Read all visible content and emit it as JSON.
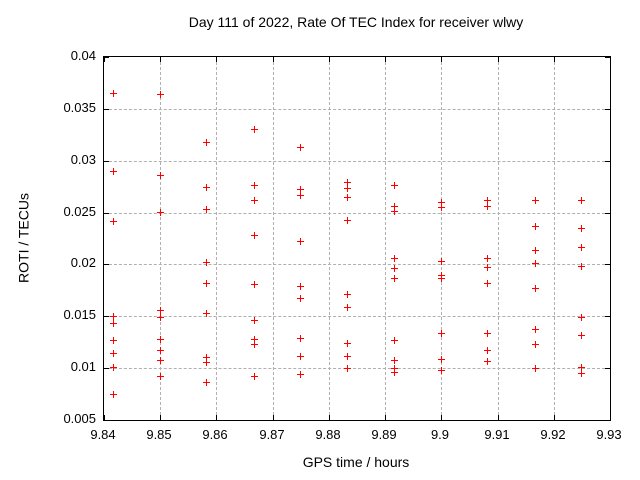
{
  "chart_data": {
    "type": "scatter",
    "title": "Day 111 of 2022, Rate Of TEC Index for receiver wlwy",
    "xlabel": "GPS time / hours",
    "ylabel": "ROTI / TECUs",
    "xlim": [
      9.84,
      9.93
    ],
    "ylim": [
      0.005,
      0.04
    ],
    "xticks": [
      9.84,
      9.85,
      9.86,
      9.87,
      9.88,
      9.89,
      9.9,
      9.91,
      9.92,
      9.93
    ],
    "xtick_labels": [
      "9.84",
      "9.85",
      "9.86",
      "9.87",
      "9.88",
      "9.89",
      "9.9",
      "9.91",
      "9.92",
      "9.93"
    ],
    "yticks": [
      0.005,
      0.01,
      0.015,
      0.02,
      0.025,
      0.03,
      0.035,
      0.04
    ],
    "ytick_labels": [
      "0.005",
      "0.01",
      "0.015",
      "0.02",
      "0.025",
      "0.03",
      "0.035",
      "0.04"
    ],
    "grid": true,
    "legend": "none",
    "marker": "plus",
    "marker_color": "#ff0000",
    "series": [
      {
        "name": "roti",
        "points": [
          [
            9.8417,
            0.0365
          ],
          [
            9.8417,
            0.029
          ],
          [
            9.8417,
            0.0241
          ],
          [
            9.8417,
            0.015
          ],
          [
            9.8417,
            0.0143
          ],
          [
            9.8417,
            0.0127
          ],
          [
            9.8417,
            0.0114
          ],
          [
            9.8417,
            0.0101
          ],
          [
            9.8417,
            0.0075
          ],
          [
            9.85,
            0.0364
          ],
          [
            9.85,
            0.0286
          ],
          [
            9.85,
            0.025
          ],
          [
            9.85,
            0.0156
          ],
          [
            9.85,
            0.0149
          ],
          [
            9.85,
            0.0128
          ],
          [
            9.85,
            0.0117
          ],
          [
            9.85,
            0.0107
          ],
          [
            9.85,
            0.0092
          ],
          [
            9.8583,
            0.0318
          ],
          [
            9.8583,
            0.0274
          ],
          [
            9.8583,
            0.0253
          ],
          [
            9.8583,
            0.0202
          ],
          [
            9.8583,
            0.0182
          ],
          [
            9.8583,
            0.0153
          ],
          [
            9.8583,
            0.011
          ],
          [
            9.8583,
            0.0105
          ],
          [
            9.8583,
            0.0086
          ],
          [
            9.8667,
            0.033
          ],
          [
            9.8667,
            0.0276
          ],
          [
            9.8667,
            0.0262
          ],
          [
            9.8667,
            0.0228
          ],
          [
            9.8667,
            0.0181
          ],
          [
            9.8667,
            0.0146
          ],
          [
            9.8667,
            0.0128
          ],
          [
            9.8667,
            0.0123
          ],
          [
            9.8667,
            0.0092
          ],
          [
            9.875,
            0.0313
          ],
          [
            9.875,
            0.0272
          ],
          [
            9.875,
            0.0266
          ],
          [
            9.875,
            0.0222
          ],
          [
            9.875,
            0.0179
          ],
          [
            9.875,
            0.0167
          ],
          [
            9.875,
            0.0129
          ],
          [
            9.875,
            0.0111
          ],
          [
            9.875,
            0.0094
          ],
          [
            9.8833,
            0.0279
          ],
          [
            9.8833,
            0.0273
          ],
          [
            9.8833,
            0.0265
          ],
          [
            9.8833,
            0.0242
          ],
          [
            9.8833,
            0.0171
          ],
          [
            9.8833,
            0.0158
          ],
          [
            9.8833,
            0.0124
          ],
          [
            9.8833,
            0.0111
          ],
          [
            9.8833,
            0.01
          ],
          [
            9.8917,
            0.0276
          ],
          [
            9.8917,
            0.0256
          ],
          [
            9.8917,
            0.0251
          ],
          [
            9.8917,
            0.0206
          ],
          [
            9.8917,
            0.0196
          ],
          [
            9.8917,
            0.0186
          ],
          [
            9.8917,
            0.0127
          ],
          [
            9.8917,
            0.0107
          ],
          [
            9.8917,
            0.01
          ],
          [
            9.8917,
            0.0096
          ],
          [
            9.9,
            0.026
          ],
          [
            9.9,
            0.0255
          ],
          [
            9.9,
            0.0203
          ],
          [
            9.9,
            0.0189
          ],
          [
            9.9,
            0.0186
          ],
          [
            9.9,
            0.0133
          ],
          [
            9.9,
            0.0108
          ],
          [
            9.9,
            0.0098
          ],
          [
            9.9083,
            0.0262
          ],
          [
            9.9083,
            0.0256
          ],
          [
            9.9083,
            0.0206
          ],
          [
            9.9083,
            0.0197
          ],
          [
            9.9083,
            0.0182
          ],
          [
            9.9083,
            0.0133
          ],
          [
            9.9083,
            0.0117
          ],
          [
            9.9083,
            0.0106
          ],
          [
            9.9167,
            0.0262
          ],
          [
            9.9167,
            0.0237
          ],
          [
            9.9167,
            0.0213
          ],
          [
            9.9167,
            0.0201
          ],
          [
            9.9167,
            0.0177
          ],
          [
            9.9167,
            0.0137
          ],
          [
            9.9167,
            0.0123
          ],
          [
            9.9167,
            0.01
          ],
          [
            9.925,
            0.0262
          ],
          [
            9.925,
            0.0235
          ],
          [
            9.925,
            0.0216
          ],
          [
            9.925,
            0.0198
          ],
          [
            9.925,
            0.0149
          ],
          [
            9.925,
            0.0131
          ],
          [
            9.925,
            0.0101
          ],
          [
            9.925,
            0.0095
          ]
        ]
      }
    ]
  }
}
